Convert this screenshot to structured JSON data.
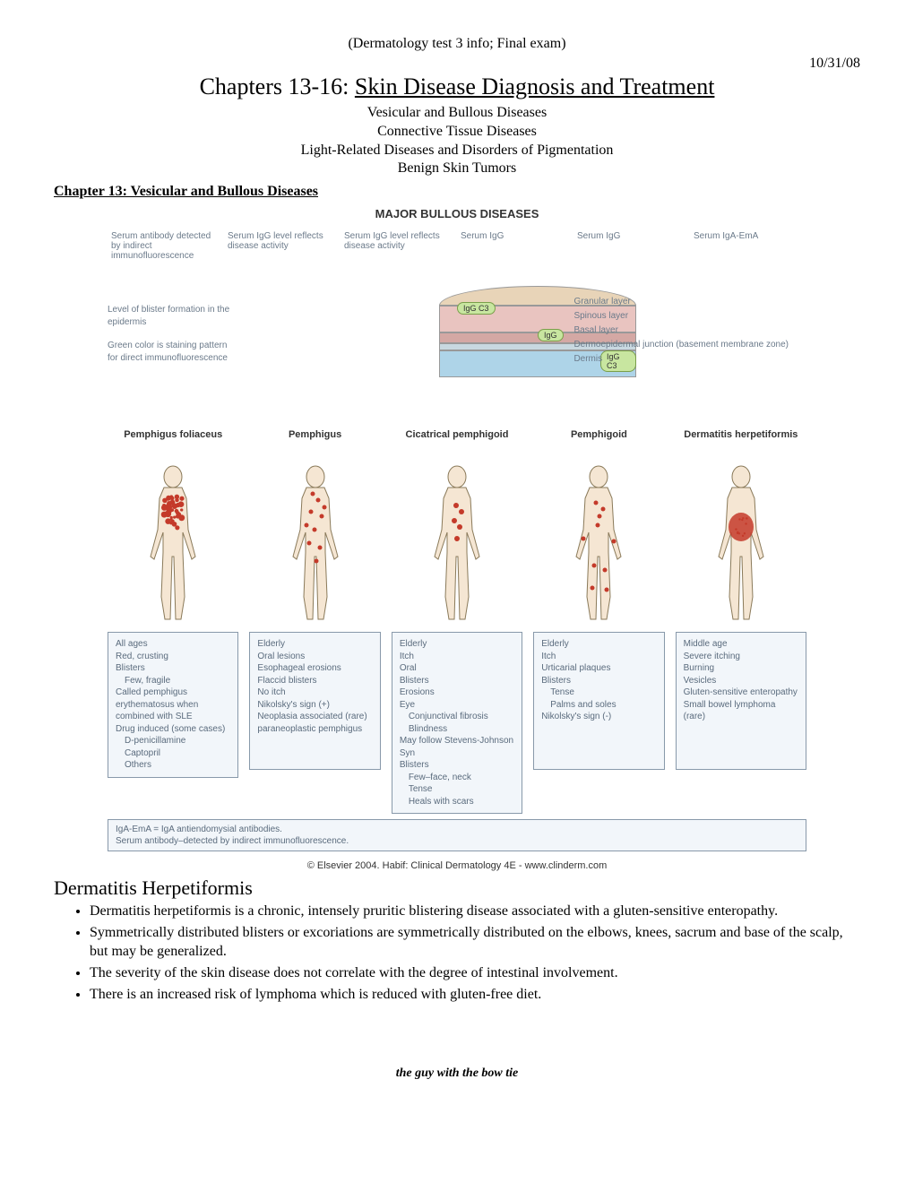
{
  "header": {
    "top": "(Dermatology test 3 info; Final exam)",
    "date": "10/31/08",
    "title_prefix": "Chapters 13-16: ",
    "title_main": "Skin Disease Diagnosis and Treatment",
    "subtitles": [
      "Vesicular and Bullous Diseases",
      "Connective Tissue Diseases",
      "Light-Related Diseases and Disorders of Pigmentation",
      "Benign Skin Tumors"
    ]
  },
  "chapter_heading": "Chapter 13: Vesicular and Bullous Diseases",
  "diagram": {
    "title": "MAJOR BULLOUS DISEASES",
    "antibody_labels": [
      "Serum antibody detected by indirect immunofluorescence",
      "Serum IgG level reflects disease activity",
      "Serum IgG level reflects disease activity",
      "Serum IgG",
      "Serum IgG",
      "Serum IgA-EmA"
    ],
    "left_notes": [
      "Level of blister formation in the epidermis",
      "Green color is staining pattern for direct immunofluorescence"
    ],
    "layer_labels": [
      "Granular layer",
      "Spinous layer",
      "Basal layer",
      "Dermoepidermal junction (basement membrane zone)",
      "Dermis"
    ],
    "igg_markers": [
      "IgG C3",
      "IgG",
      "IgG C3"
    ],
    "diseases": [
      {
        "name": "Pemphigus foliaceus",
        "info": [
          "All ages",
          "Red, crusting",
          "Blisters",
          "  Few, fragile",
          "Called pemphigus erythematosus when combined with SLE",
          "Drug induced (some cases)",
          "  D-penicillamine",
          "  Captopril",
          "  Others"
        ],
        "lesion_pattern": "upper_torso_dense"
      },
      {
        "name": "Pemphigus",
        "info": [
          "Elderly",
          "Oral lesions",
          "Esophageal erosions",
          "Flaccid blisters",
          "No itch",
          "Nikolsky's sign (+)",
          "Neoplasia associated (rare) paraneoplastic pemphigus"
        ],
        "lesion_pattern": "scattered"
      },
      {
        "name": "Cicatrical pemphigoid",
        "info": [
          "Elderly",
          "Itch",
          "Oral",
          "Blisters",
          "Erosions",
          "Eye",
          "  Conjunctival fibrosis",
          "  Blindness",
          "May follow Stevens-Johnson Syn",
          "Blisters",
          "  Few–face, neck",
          "  Tense",
          "  Heals with scars"
        ],
        "lesion_pattern": "few_torso"
      },
      {
        "name": "Pemphigoid",
        "info": [
          "Elderly",
          "Itch",
          "Urticarial plaques",
          "Blisters",
          "  Tense",
          "  Palms and soles",
          "Nikolsky's sign (-)"
        ],
        "lesion_pattern": "scattered_limbs"
      },
      {
        "name": "Dermatitis herpetiformis",
        "info": [
          "Middle age",
          "Severe itching",
          "Burning",
          "Vesicles",
          "Gluten-sensitive enteropathy",
          "Small bowel lymphoma (rare)"
        ],
        "lesion_pattern": "abdomen_patch"
      }
    ],
    "footnote": [
      "IgA-EmA = IgA antiendomysial antibodies.",
      "Serum antibody–detected by indirect immunofluorescence."
    ],
    "copyright": "© Elsevier 2004. Habif: Clinical Dermatology 4E - www.clinderm.com"
  },
  "section": {
    "heading": "Dermatitis Herpetiformis",
    "bullets": [
      "Dermatitis herpetiformis is a chronic, intensely pruritic blistering disease associated with a gluten-sensitive enteropathy.",
      "Symmetrically distributed blisters or excoriations are symmetrically distributed on the elbows, knees, sacrum and base of the scalp, but may be generalized.",
      "The severity of the skin disease does not correlate with the degree of intestinal involvement.",
      "There is an increased risk of lymphoma which is reduced with gluten-free diet."
    ]
  },
  "footer": "the guy with the bow tie",
  "colors": {
    "lesion": "#c43a2a",
    "skin": "#f5e6d3",
    "outline": "#8a7a5a",
    "box_bg": "#f2f6fa",
    "box_border": "#8899aa",
    "label_text": "#5a6b7d"
  }
}
